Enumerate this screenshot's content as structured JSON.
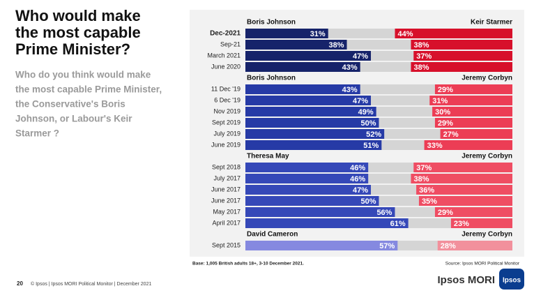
{
  "title_lines": [
    "Who would make",
    "the most capable",
    "Prime Minister?"
  ],
  "subtitle_lines": [
    "Who do you think would make",
    "the most capable Prime Minister,",
    "the Conservative's Boris",
    "Johnson, or Labour's Keir",
    "Starmer ?"
  ],
  "chart_data": {
    "type": "diverging-bar",
    "xlim": [
      0,
      100
    ],
    "groups": [
      {
        "categories": [
          "Dec-2021",
          "Sep-21",
          "March 2021",
          "June 2020"
        ],
        "series": [
          {
            "name": "Boris Johnson",
            "color": "#16236a",
            "values": [
              31,
              38,
              47,
              43
            ],
            "value_labels": [
              "31%",
              "38%",
              "47%",
              "43%"
            ]
          },
          {
            "name": "Keir Starmer",
            "color": "#d7102b",
            "values": [
              44,
              38,
              37,
              38
            ],
            "value_labels": [
              "44%",
              "38%",
              "37%",
              "38%"
            ]
          }
        ]
      },
      {
        "categories": [
          "11 Dec '19",
          "6 Dec '19",
          "Nov 2019",
          "Sept 2019",
          "July 2019",
          "June 2019"
        ],
        "series": [
          {
            "name": "Boris Johnson",
            "color": "#263aa6",
            "values": [
              43,
              47,
              49,
              50,
              52,
              51
            ],
            "value_labels": [
              "43%",
              "47%",
              "49%",
              "50%",
              "52%",
              "51%"
            ]
          },
          {
            "name": "Jeremy Corbyn",
            "color": "#ec3d55",
            "values": [
              29,
              31,
              30,
              29,
              27,
              33
            ],
            "value_labels": [
              "29%",
              "31%",
              "30%",
              "29%",
              "27%",
              "33%"
            ]
          }
        ]
      },
      {
        "categories": [
          "Sept 2018",
          "July 2017",
          "June 2017",
          "June 2017",
          "May 2017",
          "April 2017"
        ],
        "series": [
          {
            "name": "Theresa May",
            "color": "#3548b8",
            "values": [
              46,
              46,
              47,
              50,
              56,
              61
            ],
            "value_labels": [
              "46%",
              "46%",
              "47%",
              "50%",
              "56%",
              "61%"
            ]
          },
          {
            "name": "Jeremy Corbyn",
            "color": "#ef4d63",
            "values": [
              37,
              38,
              36,
              35,
              29,
              23
            ],
            "value_labels": [
              "37%",
              "38%",
              "36%",
              "35%",
              "29%",
              "23%"
            ]
          }
        ]
      },
      {
        "categories": [
          "Sept 2015"
        ],
        "series": [
          {
            "name": "David Cameron",
            "color": "#8589e0",
            "values": [
              57
            ],
            "value_labels": [
              "57%"
            ]
          },
          {
            "name": "Jeremy Corbyn",
            "color": "#f2909c",
            "values": [
              28
            ],
            "value_labels": [
              "28%"
            ]
          }
        ]
      }
    ],
    "base_note": "Base: 1,005 British adults 18+, 3-10 December 2021.",
    "source_note": "Source: Ipsos MORI Political Monitor"
  },
  "footer": {
    "page_number": "20",
    "text": "© Ipsos | Ipsos MORI Political Monitor | December 2021",
    "brand": "Ipsos MORI",
    "logo": "Ipsos"
  }
}
